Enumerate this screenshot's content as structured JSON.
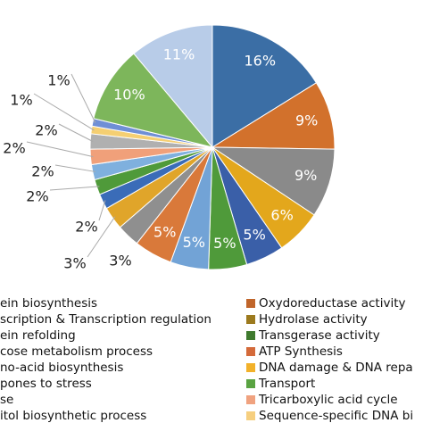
{
  "chart_data": {
    "type": "pie",
    "values": [
      16,
      9,
      9,
      6,
      5,
      5,
      5,
      5,
      3,
      3,
      2,
      2,
      2,
      2,
      2,
      1,
      1,
      10,
      11
    ],
    "value_labels": [
      "16%",
      "9%",
      "9%",
      "6%",
      "5%",
      "5%",
      "5%",
      "5%",
      "3%",
      "3%",
      "2%",
      "2%",
      "2%",
      "2%",
      "2%",
      "1%",
      "1%",
      "10%",
      "11%"
    ],
    "colors": [
      "#3b6ea5",
      "#d2712c",
      "#8a8a8a",
      "#e3a71c",
      "#3a5fa8",
      "#4f9a3a",
      "#72a3d6",
      "#d9793a",
      "#8f8f8f",
      "#e0a52a",
      "#3a6cb8",
      "#4f9a3a",
      "#7fb0de",
      "#f0a07a",
      "#b0b0b0",
      "#f5cf72",
      "#6f8fd6",
      "#7db65b",
      "#b8cce8"
    ],
    "legend_left": [
      "ein biosynthesis",
      "scription & Transcription regulation",
      "ein refolding",
      "cose metabolism process",
      "no-acid biosynthesis",
      "pones to stress",
      "se",
      "itol biosynthetic process"
    ],
    "legend_right": [
      {
        "name": "Oxydoreductase activity",
        "color": "#c0652a"
      },
      {
        "name": "Hydrolase activity",
        "color": "#9c7a1e"
      },
      {
        "name": "Transgerase activity",
        "color": "#3f7a2e"
      },
      {
        "name": "ATP Synthesis",
        "color": "#d46a3a"
      },
      {
        "name": "DNA damage & DNA repa",
        "color": "#f2b12a"
      },
      {
        "name": "Transport",
        "color": "#5aa342"
      },
      {
        "name": "Tricarboxylic acid cycle",
        "color": "#f0a27f"
      },
      {
        "name": "Sequence-specific DNA bi",
        "color": "#f6cf7f"
      }
    ]
  }
}
